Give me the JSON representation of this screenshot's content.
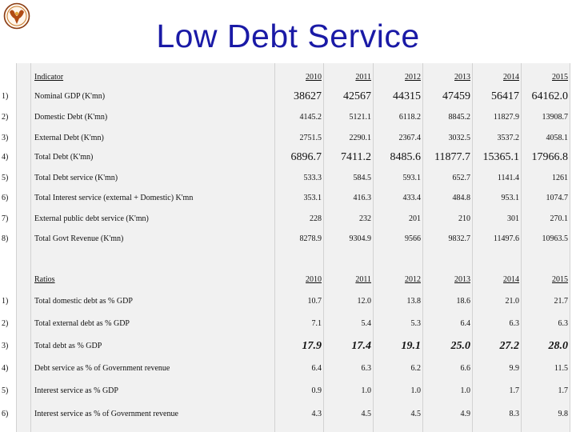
{
  "title": "Low Debt Service",
  "logo_icon": "emblem-icon",
  "debt_table": {
    "header": {
      "label": "Indicator",
      "years": [
        "2010",
        "2011",
        "2012",
        "2013",
        "2014",
        "2015"
      ]
    },
    "rows": [
      {
        "num": "1)",
        "label": "Nominal GDP (K'mn)",
        "values": [
          "38627",
          "42567",
          "44315",
          "47459",
          "56417",
          "64162.0"
        ]
      },
      {
        "num": "2)",
        "label": "Domestic Debt (K'mn)",
        "values": [
          "4145.2",
          "5121.1",
          "6118.2",
          "8845.2",
          "11827.9",
          "13908.7"
        ]
      },
      {
        "num": "3)",
        "label": "External Debt (K'mn)",
        "values": [
          "2751.5",
          "2290.1",
          "2367.4",
          "3032.5",
          "3537.2",
          "4058.1"
        ]
      },
      {
        "num": "4)",
        "label": "Total Debt (K'mn)",
        "values": [
          "6896.7",
          "7411.2",
          "8485.6",
          "11877.7",
          "15365.1",
          "17966.8"
        ]
      },
      {
        "num": "5)",
        "label": "Total Debt service  (K'mn)",
        "values": [
          "533.3",
          "584.5",
          "593.1",
          "652.7",
          "1141.4",
          "1261"
        ]
      },
      {
        "num": "6)",
        "label": "Total Interest service (external + Domestic) K'mn",
        "values": [
          "353.1",
          "416.3",
          "433.4",
          "484.8",
          "953.1",
          "1074.7"
        ]
      },
      {
        "num": "7)",
        "label": "External public debt service (K'mn)",
        "values": [
          "228",
          "232",
          "201",
          "210",
          "301",
          "270.1"
        ]
      },
      {
        "num": "8)",
        "label": "Total Govt Revenue (K'mn)",
        "values": [
          "8278.9",
          "9304.9",
          "9566",
          "9832.7",
          "11497.6",
          "10963.5"
        ]
      }
    ]
  },
  "ratio_table": {
    "header": {
      "label": "Ratios",
      "years": [
        "2010",
        "2011",
        "2012",
        "2013",
        "2014",
        "2015"
      ]
    },
    "rows": [
      {
        "num": "1)",
        "label": "Total domestic debt as % GDP",
        "values": [
          "10.7",
          "12.0",
          "13.8",
          "18.6",
          "21.0",
          "21.7"
        ]
      },
      {
        "num": "2)",
        "label": "Total external debt as % GDP",
        "values": [
          "7.1",
          "5.4",
          "5.3",
          "6.4",
          "6.3",
          "6.3"
        ]
      },
      {
        "num": "3)",
        "label": "Total debt as % GDP",
        "values": [
          "17.9",
          "17.4",
          "19.1",
          "25.0",
          "27.2",
          "28.0"
        ]
      },
      {
        "num": "4)",
        "label": "Debt service as % of Government revenue",
        "values": [
          "6.4",
          "6.3",
          "6.2",
          "6.6",
          "9.9",
          "11.5"
        ]
      },
      {
        "num": "5)",
        "label": "Interest service as % GDP",
        "values": [
          "0.9",
          "1.0",
          "1.0",
          "1.0",
          "1.7",
          "1.7"
        ]
      },
      {
        "num": "6)",
        "label": "Interest service as % of Government revenue",
        "values": [
          "4.3",
          "4.5",
          "4.5",
          "4.9",
          "8.3",
          "9.8"
        ]
      }
    ]
  }
}
